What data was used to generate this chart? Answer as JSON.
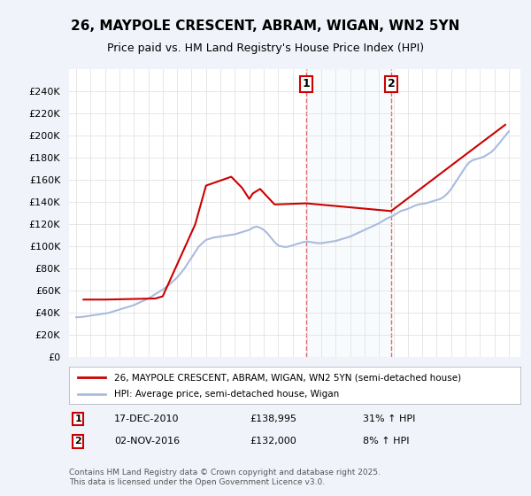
{
  "title_line1": "26, MAYPOLE CRESCENT, ABRAM, WIGAN, WN2 5YN",
  "title_line2": "Price paid vs. HM Land Registry's House Price Index (HPI)",
  "legend_label1": "26, MAYPOLE CRESCENT, ABRAM, WIGAN, WN2 5YN (semi-detached house)",
  "legend_label2": "HPI: Average price, semi-detached house, Wigan",
  "annotation1_label": "1",
  "annotation1_date": "17-DEC-2010",
  "annotation1_price": "£138,995",
  "annotation1_hpi": "31% ↑ HPI",
  "annotation2_label": "2",
  "annotation2_date": "02-NOV-2016",
  "annotation2_price": "£132,000",
  "annotation2_hpi": "8% ↑ HPI",
  "footnote": "Contains HM Land Registry data © Crown copyright and database right 2025.\nThis data is licensed under the Open Government Licence v3.0.",
  "purchase1_x": 2010.958,
  "purchase1_y": 138995,
  "purchase2_x": 2016.836,
  "purchase2_y": 132000,
  "vline1_x": 2010.958,
  "vline2_x": 2016.836,
  "background_color": "#f0f4fa",
  "plot_bg_color": "#ffffff",
  "red_color": "#cc0000",
  "blue_color": "#aabbdd",
  "vline_color": "#dd4444",
  "ylim": [
    0,
    260000
  ],
  "yticks": [
    0,
    20000,
    40000,
    60000,
    80000,
    100000,
    120000,
    140000,
    160000,
    180000,
    200000,
    220000,
    240000
  ],
  "xmin": 1994.5,
  "xmax": 2025.8,
  "xticks": [
    1995,
    1996,
    1997,
    1998,
    1999,
    2000,
    2001,
    2002,
    2003,
    2004,
    2005,
    2006,
    2007,
    2008,
    2009,
    2010,
    2011,
    2012,
    2013,
    2014,
    2015,
    2016,
    2017,
    2018,
    2019,
    2020,
    2021,
    2022,
    2023,
    2024,
    2025
  ],
  "hpi_x": [
    1995.0,
    1995.25,
    1995.5,
    1995.75,
    1996.0,
    1996.25,
    1996.5,
    1996.75,
    1997.0,
    1997.25,
    1997.5,
    1997.75,
    1998.0,
    1998.25,
    1998.5,
    1998.75,
    1999.0,
    1999.25,
    1999.5,
    1999.75,
    2000.0,
    2000.25,
    2000.5,
    2000.75,
    2001.0,
    2001.25,
    2001.5,
    2001.75,
    2002.0,
    2002.25,
    2002.5,
    2002.75,
    2003.0,
    2003.25,
    2003.5,
    2003.75,
    2004.0,
    2004.25,
    2004.5,
    2004.75,
    2005.0,
    2005.25,
    2005.5,
    2005.75,
    2006.0,
    2006.25,
    2006.5,
    2006.75,
    2007.0,
    2007.25,
    2007.5,
    2007.75,
    2008.0,
    2008.25,
    2008.5,
    2008.75,
    2009.0,
    2009.25,
    2009.5,
    2009.75,
    2010.0,
    2010.25,
    2010.5,
    2010.75,
    2011.0,
    2011.25,
    2011.5,
    2011.75,
    2012.0,
    2012.25,
    2012.5,
    2012.75,
    2013.0,
    2013.25,
    2013.5,
    2013.75,
    2014.0,
    2014.25,
    2014.5,
    2014.75,
    2015.0,
    2015.25,
    2015.5,
    2015.75,
    2016.0,
    2016.25,
    2016.5,
    2016.75,
    2017.0,
    2017.25,
    2017.5,
    2017.75,
    2018.0,
    2018.25,
    2018.5,
    2018.75,
    2019.0,
    2019.25,
    2019.5,
    2019.75,
    2020.0,
    2020.25,
    2020.5,
    2020.75,
    2021.0,
    2021.25,
    2021.5,
    2021.75,
    2022.0,
    2022.25,
    2022.5,
    2022.75,
    2023.0,
    2023.25,
    2023.5,
    2023.75,
    2024.0,
    2024.25,
    2024.5,
    2024.75,
    2025.0
  ],
  "hpi_y": [
    36000,
    36200,
    36500,
    37000,
    37500,
    38000,
    38500,
    39000,
    39500,
    40000,
    41000,
    42000,
    43000,
    44000,
    45000,
    46000,
    47000,
    48500,
    50000,
    51500,
    53000,
    55000,
    57000,
    59000,
    61000,
    63500,
    66000,
    69000,
    72000,
    76000,
    80000,
    85000,
    90000,
    95000,
    100000,
    103000,
    106000,
    107000,
    108000,
    108500,
    109000,
    109500,
    110000,
    110500,
    111000,
    112000,
    113000,
    114000,
    115000,
    117000,
    118000,
    117000,
    115000,
    112000,
    108000,
    104000,
    101000,
    100000,
    99500,
    100000,
    101000,
    102000,
    103000,
    104000,
    104500,
    104000,
    103500,
    103000,
    103000,
    103500,
    104000,
    104500,
    105000,
    106000,
    107000,
    108000,
    109000,
    110500,
    112000,
    113500,
    115000,
    116500,
    118000,
    119500,
    121000,
    123000,
    125000,
    126500,
    128000,
    130000,
    132000,
    133000,
    134000,
    135500,
    137000,
    138000,
    138500,
    139000,
    140000,
    141000,
    142000,
    143000,
    145000,
    148000,
    152000,
    157000,
    162000,
    167000,
    172000,
    176000,
    178000,
    179000,
    180000,
    181000,
    183000,
    185000,
    188000,
    192000,
    196000,
    200000,
    204000
  ],
  "price_x": [
    1995.5,
    1997.0,
    2000.5,
    2001.0,
    2003.25,
    2004.0,
    2005.75,
    2006.5,
    2007.0,
    2007.25,
    2007.75,
    2008.75,
    2010.958,
    2016.836,
    2022.0,
    2024.75
  ],
  "price_y": [
    52000,
    52000,
    53000,
    55000,
    120000,
    155000,
    163000,
    153000,
    143000,
    148000,
    152000,
    138000,
    138995,
    132000,
    183000,
    210000
  ]
}
